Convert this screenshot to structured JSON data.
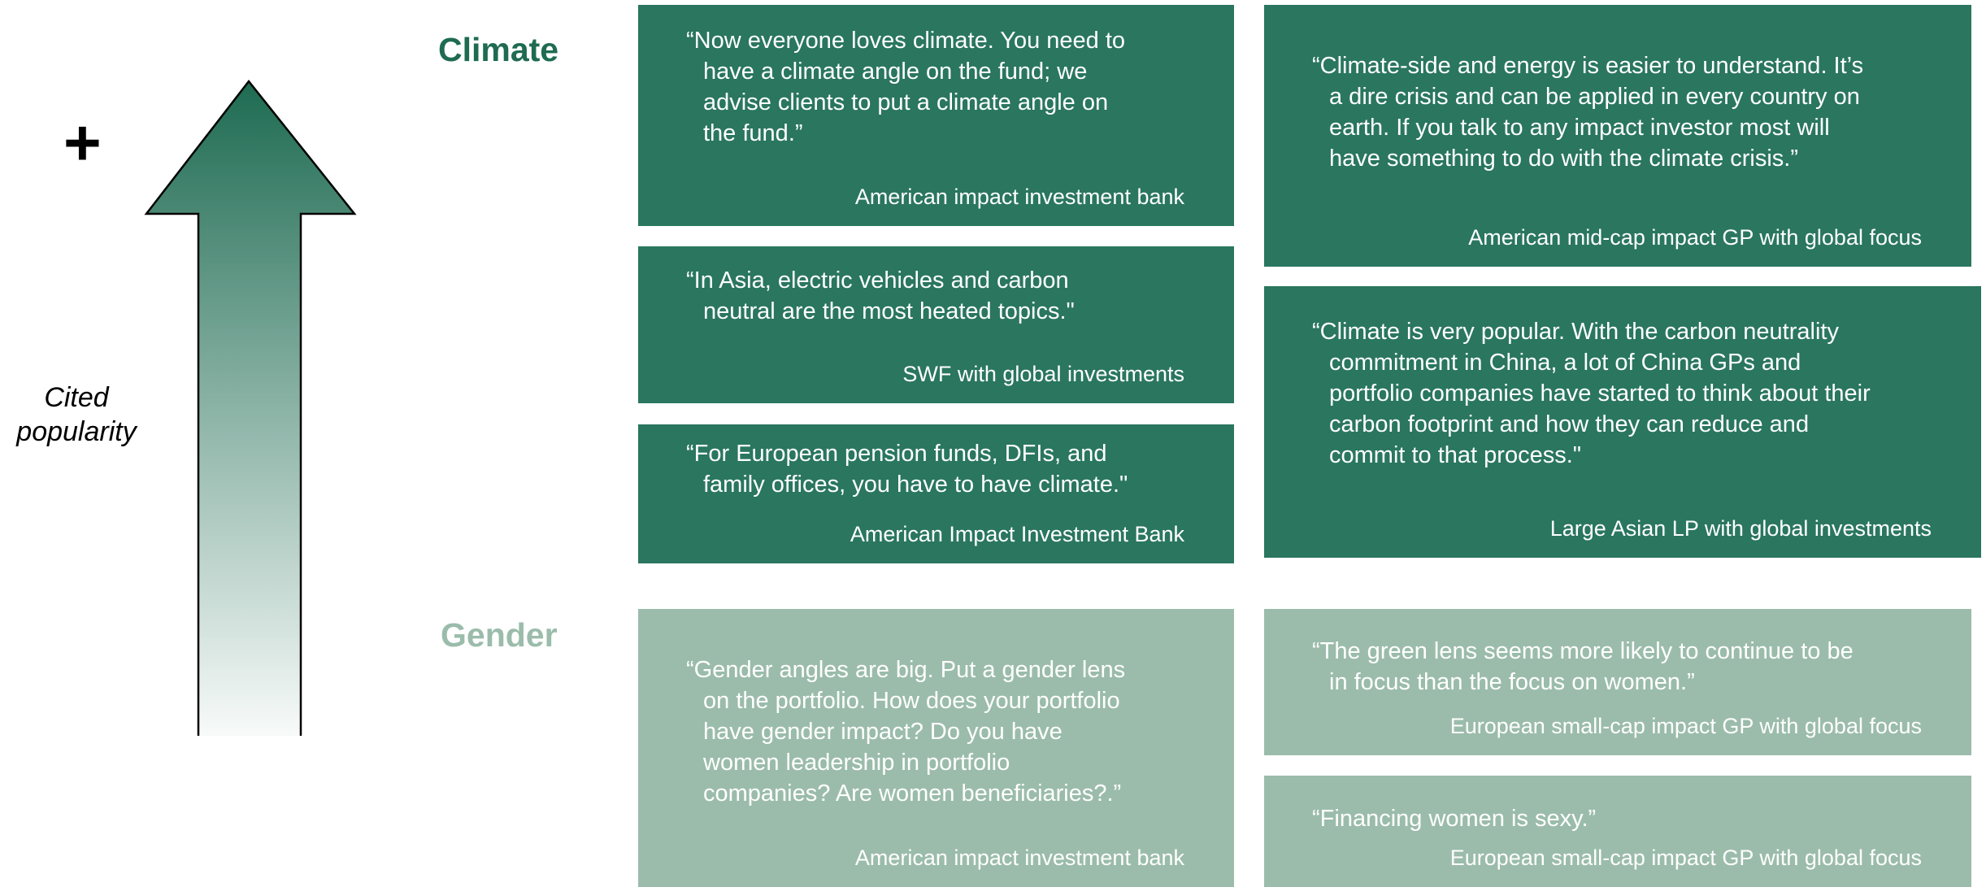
{
  "plus": "+",
  "axis_label": [
    "Cited",
    "popularity"
  ],
  "sections": [
    {
      "label": "Climate",
      "cards": [
        {
          "quote": [
            "“Now everyone loves climate. You need to",
            "have a climate angle on the fund; we",
            "advise clients to put a climate angle on",
            "the fund.”"
          ],
          "source": "American impact investment bank"
        },
        {
          "quote": [
            "“In Asia, electric vehicles and carbon",
            "neutral are the most heated topics.\""
          ],
          "source": "SWF with global investments"
        },
        {
          "quote": [
            "“For European pension funds, DFIs, and",
            "family offices, you have to have climate.\""
          ],
          "source": "American Impact Investment Bank"
        },
        {
          "quote": [
            "“Climate-side and energy is easier to understand. It’s",
            "a dire crisis and can be applied in every country on",
            "earth. If you talk to any impact investor most will",
            "have something to do with the climate crisis.”"
          ],
          "source": "American mid-cap impact GP with global focus"
        },
        {
          "quote": [
            "“Climate is very popular. With the carbon neutrality",
            "commitment in China, a lot of China GPs and",
            "portfolio companies have started to think about their",
            "carbon footprint and how they can reduce and",
            "commit to that process.\""
          ],
          "source": "Large Asian LP with global investments"
        }
      ]
    },
    {
      "label": "Gender",
      "cards": [
        {
          "quote": [
            "“Gender angles are big. Put a gender lens",
            "on the portfolio. How does your portfolio",
            "have gender impact? Do you have",
            "women leadership in portfolio",
            "companies? Are women beneficiaries?.”"
          ],
          "source": "American impact investment bank"
        },
        {
          "quote": [
            "“The green lens seems more likely to continue to be",
            "in focus than the focus on women.”"
          ],
          "source": "European small-cap impact GP with global focus"
        },
        {
          "quote": [
            "“Financing women is sexy.”"
          ],
          "source": "European small-cap impact GP with global focus"
        }
      ]
    }
  ]
}
